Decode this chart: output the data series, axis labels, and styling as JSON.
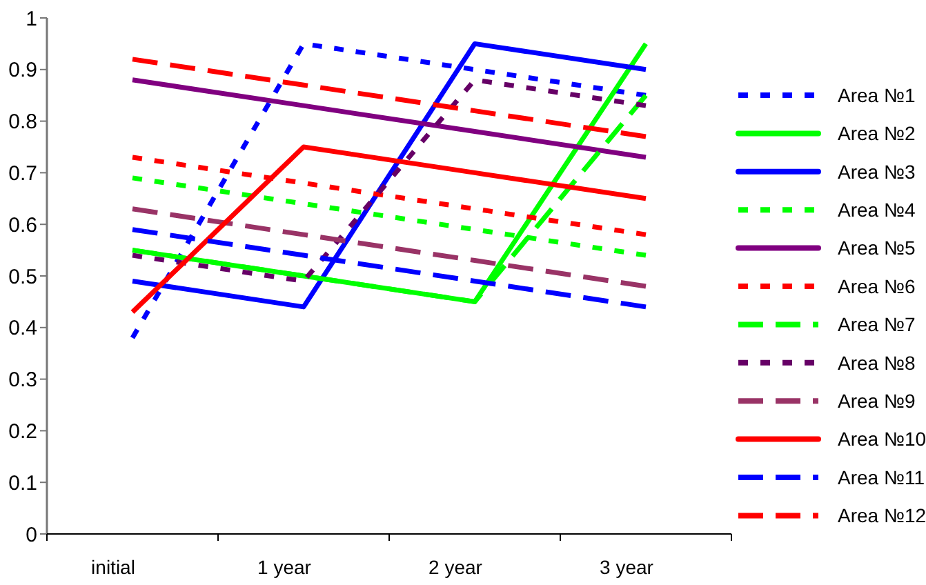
{
  "chart_data": {
    "type": "line",
    "categories": [
      "initial",
      "1 year",
      "2  year",
      "3  year"
    ],
    "ylim": [
      0,
      1
    ],
    "yticks": [
      0,
      0.1,
      0.2,
      0.3,
      0.4,
      0.5,
      0.6,
      0.7,
      0.8,
      0.9,
      1
    ],
    "grid": false,
    "legend": "right",
    "marker": "none",
    "series": [
      {
        "name": "Area №1",
        "color": "#0000ff",
        "line_style": "dotted",
        "values": [
          0.38,
          0.95,
          0.9,
          0.85
        ]
      },
      {
        "name": "Area №2",
        "color": "#00ff00",
        "line_style": "solid",
        "values": [
          0.55,
          0.5,
          0.45,
          0.95
        ]
      },
      {
        "name": "Area №3",
        "color": "#0000ff",
        "line_style": "solid",
        "values": [
          0.49,
          0.44,
          0.95,
          0.9
        ]
      },
      {
        "name": "Area №4",
        "color": "#00ff00",
        "line_style": "dotted",
        "values": [
          0.69,
          0.64,
          0.59,
          0.54
        ]
      },
      {
        "name": "Area №5",
        "color": "#800080",
        "line_style": "solid",
        "values": [
          0.88,
          0.83,
          0.78,
          0.73
        ]
      },
      {
        "name": "Area №6",
        "color": "#ff0000",
        "line_style": "dotted",
        "values": [
          0.73,
          0.68,
          0.63,
          0.58
        ]
      },
      {
        "name": "Area №7",
        "color": "#00ff00",
        "line_style": "dashed",
        "values": [
          0.55,
          0.5,
          0.45,
          0.85
        ]
      },
      {
        "name": "Area №8",
        "color": "#660066",
        "line_style": "dotted",
        "values": [
          0.54,
          0.49,
          0.88,
          0.83
        ]
      },
      {
        "name": "Area №9",
        "color": "#993366",
        "line_style": "dashed",
        "values": [
          0.63,
          0.58,
          0.53,
          0.48
        ]
      },
      {
        "name": "Area №10",
        "color": "#ff0000",
        "line_style": "solid",
        "values": [
          0.43,
          0.75,
          0.7,
          0.65
        ]
      },
      {
        "name": "Area №11",
        "color": "#0000ff",
        "line_style": "dashed",
        "values": [
          0.59,
          0.54,
          0.49,
          0.44
        ]
      },
      {
        "name": "Area №12",
        "color": "#ff0000",
        "line_style": "dashed",
        "values": [
          0.92,
          0.87,
          0.82,
          0.77
        ]
      }
    ]
  }
}
